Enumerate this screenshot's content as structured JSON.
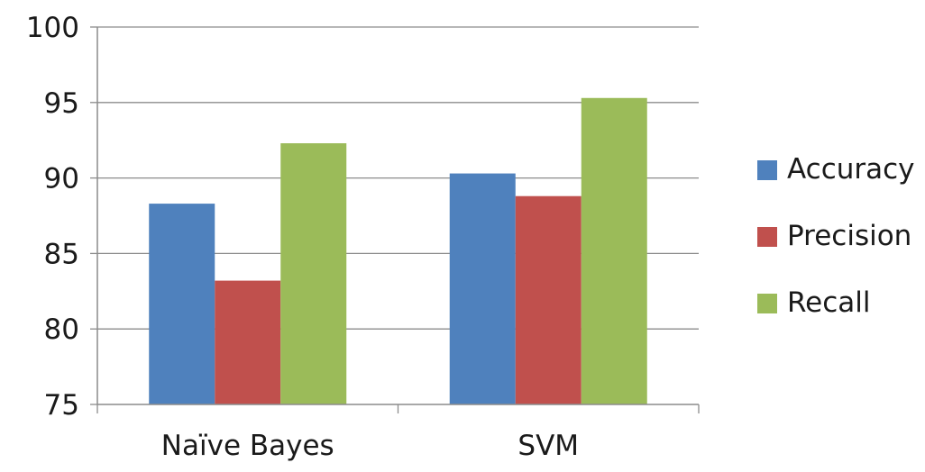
{
  "chart_data": {
    "type": "bar",
    "title": "",
    "xlabel": "",
    "ylabel": "",
    "ylim": [
      75,
      100
    ],
    "yticks": [
      75,
      80,
      85,
      90,
      95,
      100
    ],
    "ytick_labels": [
      "75",
      "80",
      "85",
      "90",
      "95",
      "100"
    ],
    "grid": true,
    "legend_position": "right",
    "categories": [
      "Naïve Bayes",
      "SVM"
    ],
    "series": [
      {
        "name": "Accuracy",
        "color": "#4f81bd",
        "values": [
          88.3,
          90.3
        ]
      },
      {
        "name": "Precision",
        "color": "#c0504d",
        "values": [
          83.2,
          88.8
        ]
      },
      {
        "name": "Recall",
        "color": "#9bbb59",
        "values": [
          92.3,
          95.3
        ]
      }
    ]
  }
}
